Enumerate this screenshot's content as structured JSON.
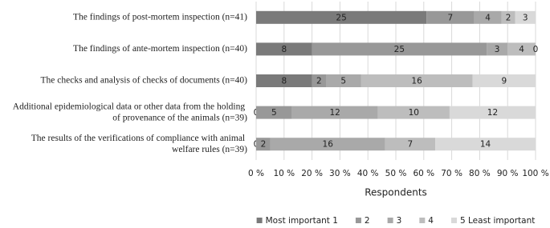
{
  "chart_data": {
    "type": "stacked-bar-100",
    "orientation": "horizontal",
    "categories": [
      "The findings of post-mortem inspection (n=41)",
      "The findings of ante-mortem inspection (n=40)",
      "The checks and analysis of checks of documents (n=40)",
      "Additional epidemiological data or other data from the holding of provenance of the animals (n=39)",
      "The results of the verifications of compliance with animal welfare rules (n=39)"
    ],
    "series": [
      {
        "name": "Most important 1",
        "color": "#7a7a7a",
        "values": [
          25,
          8,
          8,
          0,
          0
        ]
      },
      {
        "name": "2",
        "color": "#989898",
        "values": [
          7,
          25,
          2,
          5,
          2
        ]
      },
      {
        "name": "3",
        "color": "#a9a9a9",
        "values": [
          4,
          3,
          5,
          12,
          16
        ]
      },
      {
        "name": "4",
        "color": "#bdbdbd",
        "values": [
          2,
          4,
          16,
          10,
          7
        ]
      },
      {
        "name": "5 Least important",
        "color": "#d9d9d9",
        "values": [
          3,
          0,
          9,
          12,
          14
        ]
      }
    ],
    "xlabel": "Respondents",
    "xlim": [
      0,
      100
    ],
    "xticks": [
      {
        "value": 0,
        "label": "0 %"
      },
      {
        "value": 10,
        "label": "10 %"
      },
      {
        "value": 20,
        "label": "20 %"
      },
      {
        "value": 30,
        "label": "30 %"
      },
      {
        "value": 40,
        "label": "40 %"
      },
      {
        "value": 50,
        "label": "50 %"
      },
      {
        "value": 60,
        "label": "60 %"
      },
      {
        "value": 70,
        "label": "70 %"
      },
      {
        "value": 80,
        "label": "80 %"
      },
      {
        "value": 90,
        "label": "90 %"
      },
      {
        "value": 100,
        "label": "100 %"
      }
    ],
    "grid": true,
    "legend": "bottom"
  }
}
